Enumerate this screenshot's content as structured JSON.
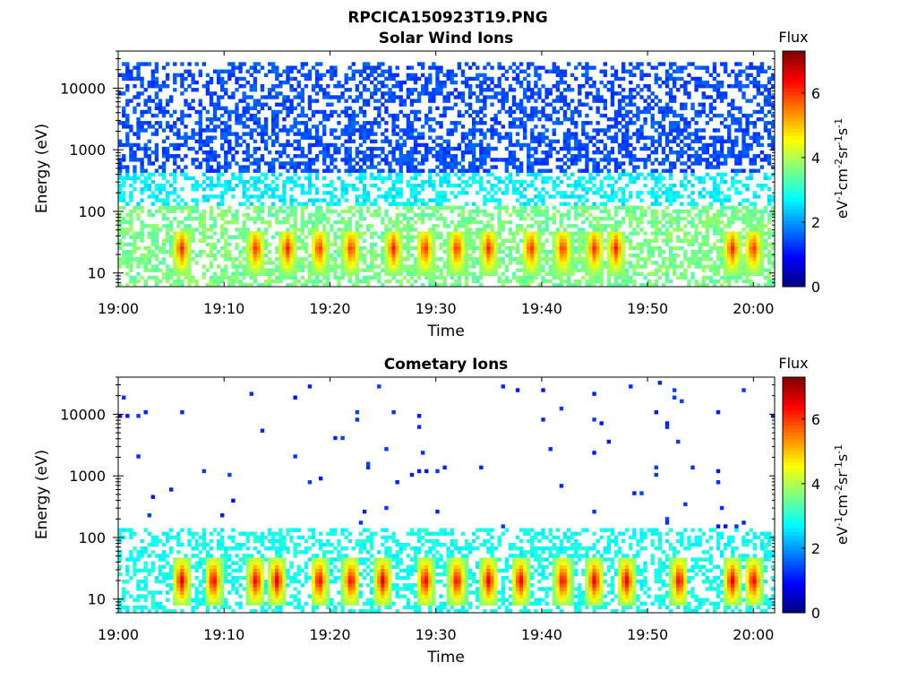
{
  "figure_title": "RPCICA150923T19.PNG",
  "chart_data": [
    {
      "type": "heatmap",
      "title": "Solar Wind Ions",
      "xlabel": "Time",
      "ylabel": "Energy (eV)",
      "x_range": [
        "19:00",
        "20:02"
      ],
      "x_ticks": [
        "19:00",
        "19:10",
        "19:20",
        "19:30",
        "19:40",
        "19:50",
        "20:00"
      ],
      "y_scale": "log",
      "y_range": [
        6,
        40000
      ],
      "y_ticks": [
        "10",
        "100",
        "1000",
        "10000"
      ],
      "colorbar": {
        "label_top": "Flux",
        "label": "eV-1cm-2sr-1s-1",
        "range": [
          0,
          7.3
        ],
        "ticks": [
          "0",
          "2",
          "4",
          "6"
        ],
        "colormap": "jet"
      },
      "features": {
        "background_flux_low_energy": 3.3,
        "background_flux_high_energy": 1.2,
        "peak_energy": 25,
        "peak_flux_max": 6.3,
        "burst_times": [
          "19:06",
          "19:13",
          "19:16",
          "19:19",
          "19:22",
          "19:26",
          "19:29",
          "19:32",
          "19:35",
          "19:39",
          "19:42",
          "19:45",
          "19:47",
          "19:58",
          "20:00"
        ]
      }
    },
    {
      "type": "heatmap",
      "title": "Cometary Ions",
      "xlabel": "Time",
      "ylabel": "Energy (eV)",
      "x_range": [
        "19:00",
        "20:02"
      ],
      "x_ticks": [
        "19:00",
        "19:10",
        "19:20",
        "19:30",
        "19:40",
        "19:50",
        "20:00"
      ],
      "y_scale": "log",
      "y_range": [
        6,
        40000
      ],
      "y_ticks": [
        "10",
        "100",
        "1000",
        "10000"
      ],
      "colorbar": {
        "label_top": "Flux",
        "label": "eV-1cm-2sr-1s-1",
        "range": [
          0,
          7.3
        ],
        "ticks": [
          "0",
          "2",
          "4",
          "6"
        ],
        "colormap": "jet"
      },
      "features": {
        "background_flux_low_energy": 2.6,
        "background_flux_high_energy": 1.0,
        "peak_energy": 20,
        "peak_flux_max": 6.8,
        "burst_times": [
          "19:06",
          "19:09",
          "19:13",
          "19:15",
          "19:19",
          "19:22",
          "19:25",
          "19:29",
          "19:32",
          "19:35",
          "19:38",
          "19:42",
          "19:45",
          "19:48",
          "19:53",
          "19:58",
          "20:00"
        ]
      }
    }
  ]
}
